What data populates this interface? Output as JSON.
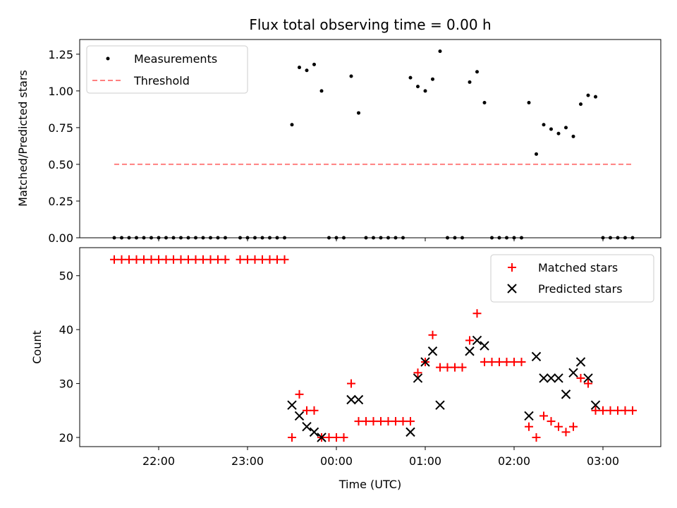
{
  "chart_data": [
    {
      "type": "scatter",
      "title": "Flux total observing time = 0.00 h",
      "xlabel": "",
      "ylabel": "Matched/Predicted stars",
      "ylim": [
        0,
        1.35
      ],
      "yticks": [
        "0.00",
        "0.25",
        "0.50",
        "0.75",
        "1.00",
        "1.25"
      ],
      "ytick_values": [
        0,
        0.25,
        0.5,
        0.75,
        1.0,
        1.25
      ],
      "legend": {
        "placement": "top-left",
        "entries": [
          "Measurements",
          "Threshold"
        ]
      },
      "threshold": {
        "name": "Threshold",
        "y": 0.5,
        "x_range": [
          "21:30",
          "03:20"
        ],
        "color": "#ff8080"
      },
      "series": [
        {
          "name": "Measurements",
          "color": "#000000",
          "points": [
            [
              "21:30",
              0
            ],
            [
              "21:35",
              0
            ],
            [
              "21:40",
              0
            ],
            [
              "21:45",
              0
            ],
            [
              "21:50",
              0
            ],
            [
              "21:55",
              0
            ],
            [
              "22:00",
              0
            ],
            [
              "22:05",
              0
            ],
            [
              "22:10",
              0
            ],
            [
              "22:15",
              0
            ],
            [
              "22:20",
              0
            ],
            [
              "22:25",
              0
            ],
            [
              "22:30",
              0
            ],
            [
              "22:35",
              0
            ],
            [
              "22:40",
              0
            ],
            [
              "22:45",
              0
            ],
            [
              "22:55",
              0
            ],
            [
              "23:00",
              0
            ],
            [
              "23:05",
              0
            ],
            [
              "23:10",
              0
            ],
            [
              "23:15",
              0
            ],
            [
              "23:20",
              0
            ],
            [
              "23:25",
              0
            ],
            [
              "23:30",
              0.77
            ],
            [
              "23:35",
              1.16
            ],
            [
              "23:40",
              1.14
            ],
            [
              "23:45",
              1.18
            ],
            [
              "23:50",
              1.0
            ],
            [
              "23:55",
              0
            ],
            [
              "00:00",
              0
            ],
            [
              "00:05",
              0
            ],
            [
              "00:10",
              1.1
            ],
            [
              "00:15",
              0.85
            ],
            [
              "00:20",
              0
            ],
            [
              "00:25",
              0
            ],
            [
              "00:30",
              0
            ],
            [
              "00:35",
              0
            ],
            [
              "00:40",
              0
            ],
            [
              "00:45",
              0
            ],
            [
              "00:50",
              1.09
            ],
            [
              "00:55",
              1.03
            ],
            [
              "01:00",
              1.0
            ],
            [
              "01:05",
              1.08
            ],
            [
              "01:10",
              1.27
            ],
            [
              "01:15",
              0
            ],
            [
              "01:20",
              0
            ],
            [
              "01:25",
              0
            ],
            [
              "01:30",
              1.06
            ],
            [
              "01:35",
              1.13
            ],
            [
              "01:40",
              0.92
            ],
            [
              "01:45",
              0
            ],
            [
              "01:50",
              0
            ],
            [
              "01:55",
              0
            ],
            [
              "02:00",
              0
            ],
            [
              "02:05",
              0
            ],
            [
              "02:10",
              0.92
            ],
            [
              "02:15",
              0.57
            ],
            [
              "02:20",
              0.77
            ],
            [
              "02:25",
              0.74
            ],
            [
              "02:30",
              0.71
            ],
            [
              "02:35",
              0.75
            ],
            [
              "02:40",
              0.69
            ],
            [
              "02:45",
              0.91
            ],
            [
              "02:50",
              0.97
            ],
            [
              "02:55",
              0.96
            ],
            [
              "03:00",
              0
            ],
            [
              "03:05",
              0
            ],
            [
              "03:10",
              0
            ],
            [
              "03:15",
              0
            ],
            [
              "03:20",
              0
            ]
          ]
        }
      ]
    },
    {
      "type": "scatter",
      "title": "",
      "xlabel": "Time (UTC)",
      "ylabel": "Count",
      "ylim": [
        18.3,
        55.2
      ],
      "yticks": [
        "20",
        "30",
        "40",
        "50"
      ],
      "ytick_values": [
        20,
        30,
        40,
        50
      ],
      "xticks": [
        "22:00",
        "23:00",
        "00:00",
        "01:00",
        "02:00",
        "03:00"
      ],
      "legend": {
        "placement": "top-right",
        "entries": [
          "Matched stars",
          "Predicted stars"
        ]
      },
      "series": [
        {
          "name": "Matched stars",
          "marker": "plus",
          "color": "#ff0000",
          "points": [
            [
              "21:30",
              53
            ],
            [
              "21:35",
              53
            ],
            [
              "21:40",
              53
            ],
            [
              "21:45",
              53
            ],
            [
              "21:50",
              53
            ],
            [
              "21:55",
              53
            ],
            [
              "22:00",
              53
            ],
            [
              "22:05",
              53
            ],
            [
              "22:10",
              53
            ],
            [
              "22:15",
              53
            ],
            [
              "22:20",
              53
            ],
            [
              "22:25",
              53
            ],
            [
              "22:30",
              53
            ],
            [
              "22:35",
              53
            ],
            [
              "22:40",
              53
            ],
            [
              "22:45",
              53
            ],
            [
              "22:55",
              53
            ],
            [
              "23:00",
              53
            ],
            [
              "23:05",
              53
            ],
            [
              "23:10",
              53
            ],
            [
              "23:15",
              53
            ],
            [
              "23:20",
              53
            ],
            [
              "23:25",
              53
            ],
            [
              "23:30",
              20
            ],
            [
              "23:35",
              28
            ],
            [
              "23:40",
              25
            ],
            [
              "23:45",
              25
            ],
            [
              "23:50",
              20
            ],
            [
              "23:55",
              20
            ],
            [
              "00:00",
              20
            ],
            [
              "00:05",
              20
            ],
            [
              "00:10",
              30
            ],
            [
              "00:15",
              23
            ],
            [
              "00:20",
              23
            ],
            [
              "00:25",
              23
            ],
            [
              "00:30",
              23
            ],
            [
              "00:35",
              23
            ],
            [
              "00:40",
              23
            ],
            [
              "00:45",
              23
            ],
            [
              "00:50",
              23
            ],
            [
              "00:55",
              32
            ],
            [
              "01:00",
              34
            ],
            [
              "01:05",
              39
            ],
            [
              "01:10",
              33
            ],
            [
              "01:15",
              33
            ],
            [
              "01:20",
              33
            ],
            [
              "01:25",
              33
            ],
            [
              "01:30",
              38
            ],
            [
              "01:35",
              43
            ],
            [
              "01:40",
              34
            ],
            [
              "01:45",
              34
            ],
            [
              "01:50",
              34
            ],
            [
              "01:55",
              34
            ],
            [
              "02:00",
              34
            ],
            [
              "02:05",
              34
            ],
            [
              "02:10",
              22
            ],
            [
              "02:15",
              20
            ],
            [
              "02:20",
              24
            ],
            [
              "02:25",
              23
            ],
            [
              "02:30",
              22
            ],
            [
              "02:35",
              21
            ],
            [
              "02:40",
              22
            ],
            [
              "02:45",
              31
            ],
            [
              "02:50",
              30
            ],
            [
              "02:55",
              25
            ],
            [
              "03:00",
              25
            ],
            [
              "03:05",
              25
            ],
            [
              "03:10",
              25
            ],
            [
              "03:15",
              25
            ],
            [
              "03:20",
              25
            ]
          ]
        },
        {
          "name": "Predicted stars",
          "marker": "x",
          "color": "#000000",
          "points": [
            [
              "23:30",
              26
            ],
            [
              "23:35",
              24
            ],
            [
              "23:40",
              22
            ],
            [
              "23:45",
              21
            ],
            [
              "23:50",
              20
            ],
            [
              "00:10",
              27
            ],
            [
              "00:15",
              27
            ],
            [
              "00:50",
              21
            ],
            [
              "00:55",
              31
            ],
            [
              "01:00",
              34
            ],
            [
              "01:05",
              36
            ],
            [
              "01:10",
              26
            ],
            [
              "01:30",
              36
            ],
            [
              "01:35",
              38
            ],
            [
              "01:40",
              37
            ],
            [
              "02:10",
              24
            ],
            [
              "02:15",
              35
            ],
            [
              "02:20",
              31
            ],
            [
              "02:25",
              31
            ],
            [
              "02:30",
              31
            ],
            [
              "02:35",
              28
            ],
            [
              "02:40",
              32
            ],
            [
              "02:45",
              34
            ],
            [
              "02:50",
              31
            ],
            [
              "02:55",
              26
            ]
          ]
        }
      ]
    }
  ]
}
